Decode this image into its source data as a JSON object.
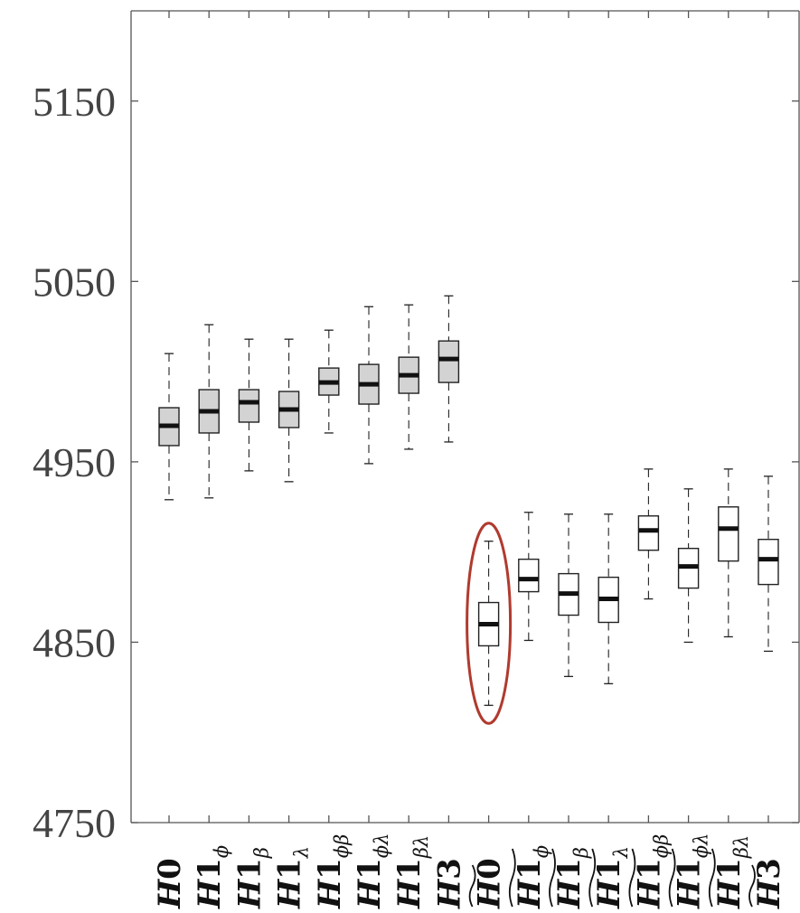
{
  "chart_data": {
    "type": "boxplot",
    "y_ticks": [
      "4750",
      "4850",
      "4950",
      "5050",
      "5150"
    ],
    "ylim": [
      4750,
      5200
    ],
    "grid": false,
    "categories": [
      {
        "base": "H",
        "num": "0",
        "sub": "",
        "tilde": false,
        "fill": "#d3d3d3"
      },
      {
        "base": "H",
        "num": "1",
        "sub": "ϕ",
        "tilde": false,
        "fill": "#d3d3d3"
      },
      {
        "base": "H",
        "num": "1",
        "sub": "β",
        "tilde": false,
        "fill": "#d3d3d3"
      },
      {
        "base": "H",
        "num": "1",
        "sub": "λ",
        "tilde": false,
        "fill": "#d3d3d3"
      },
      {
        "base": "H",
        "num": "1",
        "sub": "ϕβ",
        "tilde": false,
        "fill": "#d3d3d3"
      },
      {
        "base": "H",
        "num": "1",
        "sub": "ϕλ",
        "tilde": false,
        "fill": "#d3d3d3"
      },
      {
        "base": "H",
        "num": "1",
        "sub": "βλ",
        "tilde": false,
        "fill": "#d3d3d3"
      },
      {
        "base": "H",
        "num": "3",
        "sub": "",
        "tilde": false,
        "fill": "#d3d3d3"
      },
      {
        "base": "H",
        "num": "0",
        "sub": "",
        "tilde": true,
        "fill": "#ffffff"
      },
      {
        "base": "H",
        "num": "1",
        "sub": "ϕ",
        "tilde": true,
        "fill": "#ffffff"
      },
      {
        "base": "H",
        "num": "1",
        "sub": "β",
        "tilde": true,
        "fill": "#ffffff"
      },
      {
        "base": "H",
        "num": "1",
        "sub": "λ",
        "tilde": true,
        "fill": "#ffffff"
      },
      {
        "base": "H",
        "num": "1",
        "sub": "ϕβ",
        "tilde": true,
        "fill": "#ffffff"
      },
      {
        "base": "H",
        "num": "1",
        "sub": "ϕλ",
        "tilde": true,
        "fill": "#ffffff"
      },
      {
        "base": "H",
        "num": "1",
        "sub": "βλ",
        "tilde": true,
        "fill": "#ffffff"
      },
      {
        "base": "H",
        "num": "3",
        "sub": "",
        "tilde": true,
        "fill": "#ffffff"
      }
    ],
    "boxes": [
      {
        "min": 4929,
        "q1": 4959,
        "median": 4970,
        "q3": 4980,
        "max": 5010
      },
      {
        "min": 4930,
        "q1": 4966,
        "median": 4978,
        "q3": 4990,
        "max": 5026
      },
      {
        "min": 4945,
        "q1": 4972,
        "median": 4983,
        "q3": 4990,
        "max": 5018
      },
      {
        "min": 4939,
        "q1": 4969,
        "median": 4979,
        "q3": 4989,
        "max": 5018
      },
      {
        "min": 4966,
        "q1": 4987,
        "median": 4994,
        "q3": 5002,
        "max": 5023
      },
      {
        "min": 4949,
        "q1": 4982,
        "median": 4993,
        "q3": 5004,
        "max": 5036
      },
      {
        "min": 4957,
        "q1": 4988,
        "median": 4998,
        "q3": 5008,
        "max": 5037
      },
      {
        "min": 4961,
        "q1": 4994,
        "median": 5007,
        "q3": 5017,
        "max": 5042
      },
      {
        "min": 4815,
        "q1": 4848,
        "median": 4860,
        "q3": 4872,
        "max": 4906
      },
      {
        "min": 4851,
        "q1": 4878,
        "median": 4885,
        "q3": 4896,
        "max": 4922
      },
      {
        "min": 4831,
        "q1": 4865,
        "median": 4877,
        "q3": 4888,
        "max": 4921
      },
      {
        "min": 4827,
        "q1": 4861,
        "median": 4874,
        "q3": 4886,
        "max": 4921
      },
      {
        "min": 4874,
        "q1": 4901,
        "median": 4912,
        "q3": 4920,
        "max": 4946
      },
      {
        "min": 4850,
        "q1": 4880,
        "median": 4892,
        "q3": 4902,
        "max": 4935
      },
      {
        "min": 4853,
        "q1": 4895,
        "median": 4913,
        "q3": 4925,
        "max": 4946
      },
      {
        "min": 4845,
        "q1": 4882,
        "median": 4896,
        "q3": 4907,
        "max": 4942
      }
    ],
    "highlighted_category_index": 8,
    "highlight_color": "#b03a2e"
  }
}
